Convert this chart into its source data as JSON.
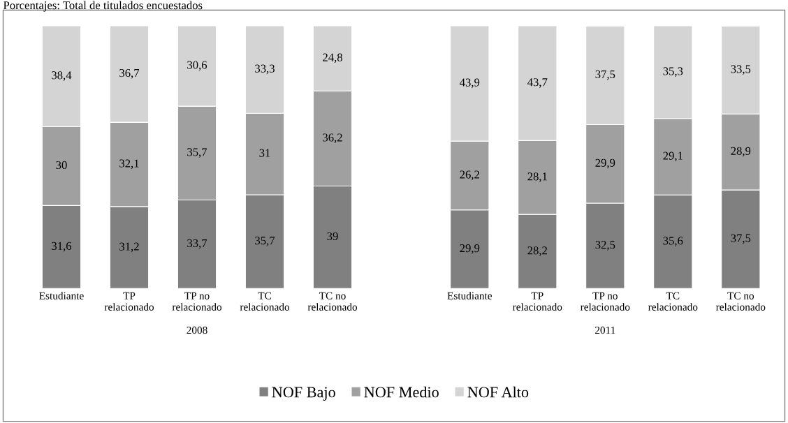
{
  "chart_data": [
    {
      "type": "bar",
      "title": "Porcentajes: Total de titulados encuestados",
      "xlabel": "2008",
      "stacked": true,
      "ylim": [
        0,
        100
      ],
      "tick_labels": "x",
      "grid": false,
      "legend": "bottom",
      "categories": [
        "Estudiante",
        "TP\nrelacionado",
        "TP no\nrelacionado",
        "TC\nrelacionado",
        "TC no\nrelacionado"
      ],
      "series": [
        {
          "name": "NOF Bajo",
          "color": "#808080",
          "values": [
            31.6,
            31.2,
            33.7,
            35.7,
            39
          ],
          "value_labels": [
            "31,6",
            "31,2",
            "33,7",
            "35,7",
            "39"
          ]
        },
        {
          "name": "NOF Medio",
          "color": "#a0a0a0",
          "values": [
            30,
            32.1,
            35.7,
            31,
            36.2
          ],
          "value_labels": [
            "30",
            "32,1",
            "35,7",
            "31",
            "36,2"
          ]
        },
        {
          "name": "NOF Alto",
          "color": "#d4d4d4",
          "values": [
            38.4,
            36.7,
            30.6,
            33.3,
            24.8
          ],
          "value_labels": [
            "38,4",
            "36,7",
            "30,6",
            "33,3",
            "24,8"
          ]
        }
      ]
    },
    {
      "type": "bar",
      "xlabel": "2011",
      "stacked": true,
      "ylim": [
        0,
        100
      ],
      "tick_labels": "x",
      "grid": false,
      "categories": [
        "Estudiante",
        "TP\nrelacionado",
        "TP no\nrelacionado",
        "TC\nrelacionado",
        "TC no\nrelacionado"
      ],
      "series": [
        {
          "color": "#808080",
          "values": [
            29.9,
            28.2,
            32.5,
            35.6,
            37.5
          ],
          "value_labels": [
            "29,9",
            "28,2",
            "32,5",
            "35,6",
            "37,5"
          ]
        },
        {
          "color": "#a0a0a0",
          "values": [
            26.2,
            28.1,
            29.9,
            29.1,
            28.9
          ],
          "value_labels": [
            "26,2",
            "28,1",
            "29,9",
            "29,1",
            "28,9"
          ]
        },
        {
          "color": "#d4d4d4",
          "values": [
            43.9,
            43.7,
            37.5,
            35.3,
            33.5
          ],
          "value_labels": [
            "43,9",
            "43,7",
            "37,5",
            "35,3",
            "33,5"
          ]
        }
      ]
    }
  ]
}
